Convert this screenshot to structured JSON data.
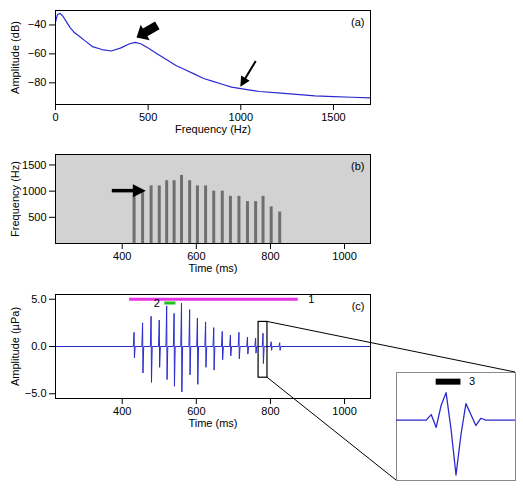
{
  "chart_data": [
    {
      "panel": "(a)",
      "type": "line",
      "x_label": "Frequency (Hz)",
      "y_label": "Amplitude (dB)",
      "x": [
        0,
        10,
        25,
        40,
        60,
        80,
        100,
        130,
        160,
        200,
        250,
        300,
        350,
        400,
        430,
        460,
        500,
        550,
        600,
        650,
        700,
        750,
        800,
        850,
        900,
        950,
        1000,
        1050,
        1100,
        1200,
        1300,
        1400,
        1500,
        1600,
        1700
      ],
      "values": [
        -38,
        -33,
        -32,
        -34,
        -38,
        -42,
        -45,
        -48,
        -51,
        -55,
        -57,
        -58,
        -56,
        -53,
        -52,
        -53,
        -56,
        -60,
        -64,
        -68,
        -71,
        -74,
        -77,
        -79,
        -81,
        -83,
        -84,
        -85,
        -86,
        -87,
        -88,
        -89,
        -89.5,
        -90,
        -90.5
      ],
      "color": "#2a2ad0",
      "xlim": [
        0,
        1700
      ],
      "xticks": [
        0,
        500,
        1000,
        1500
      ],
      "ylim": [
        -95,
        -30
      ],
      "yticks": [
        {
          "value": -40,
          "label": "−40"
        },
        {
          "value": -60,
          "label": "−60"
        },
        {
          "value": -80,
          "label": "−80"
        }
      ],
      "arrows": [
        {
          "x": 440,
          "y": -49
        },
        {
          "x": 1000,
          "y": -83
        }
      ]
    },
    {
      "panel": "(b)",
      "type": "spectrogram",
      "x_label": "Time (ms)",
      "y_label": "Frequency (Hz)",
      "stripe_times": [
        432,
        455,
        478,
        500,
        520,
        540,
        560,
        582,
        603,
        625,
        647,
        670,
        692,
        715,
        738,
        760,
        780,
        802,
        825
      ],
      "stripe_fmax": [
        900,
        1000,
        1100,
        1100,
        1200,
        1200,
        1300,
        1200,
        1100,
        1100,
        1000,
        1000,
        900,
        900,
        800,
        800,
        900,
        700,
        600
      ],
      "xlim": [
        220,
        1070
      ],
      "xticks": [
        400,
        600,
        800,
        1000
      ],
      "ylim": [
        0,
        1700
      ],
      "yticks": [
        500,
        1000,
        1500
      ],
      "arrows": [
        {
          "x": 465,
          "y": 1000
        }
      ]
    },
    {
      "panel": "(c)",
      "type": "line",
      "x_label": "Time (ms)",
      "y_label": "Amplitude (µPa)",
      "x": [
        220,
        430,
        432,
        433,
        435,
        453,
        455,
        456,
        458,
        476,
        478,
        479,
        481,
        498,
        500,
        501,
        503,
        518,
        520,
        521,
        523,
        538,
        540,
        541,
        543,
        558,
        560,
        561,
        563,
        580,
        582,
        583,
        585,
        601,
        603,
        604,
        606,
        623,
        625,
        626,
        628,
        645,
        647,
        648,
        650,
        668,
        670,
        671,
        673,
        690,
        692,
        693,
        695,
        713,
        715,
        716,
        718,
        736,
        738,
        739,
        741,
        758,
        760,
        761,
        763,
        778,
        780,
        781,
        783,
        800,
        802,
        803,
        805,
        823,
        825,
        826,
        828,
        1070
      ],
      "values": [
        0,
        0,
        1.5,
        -1.2,
        0,
        0,
        2.5,
        -2.8,
        0,
        0,
        3.2,
        -3.8,
        0,
        0,
        2.8,
        -2.2,
        0,
        0,
        4.3,
        -3.5,
        0,
        0,
        3.5,
        -4.2,
        0,
        0,
        4.6,
        -4.8,
        0,
        0,
        3.9,
        -3.0,
        0,
        0,
        3.0,
        -4.0,
        0,
        0,
        2.6,
        -2.2,
        0,
        0,
        2.0,
        -2.5,
        0,
        0,
        1.6,
        -1.4,
        0,
        0,
        1.2,
        -1.0,
        0,
        0,
        1.5,
        -1.3,
        0,
        0,
        1.0,
        -0.8,
        0,
        0,
        0.9,
        -0.7,
        0,
        0,
        1.4,
        -1.8,
        0,
        0,
        0.5,
        -0.4,
        0,
        0,
        0.4,
        -0.4,
        0,
        0
      ],
      "color": "#2a2ad0",
      "xlim": [
        220,
        1070
      ],
      "xticks": [
        400,
        600,
        800,
        1000
      ],
      "ylim": [
        -5.5,
        5.5
      ],
      "yticks": [
        {
          "value": -5,
          "label": "−5.0"
        },
        {
          "value": 0,
          "label": "0.0"
        },
        {
          "value": 5,
          "label": "5.0"
        }
      ],
      "annotations": [
        {
          "label": "1",
          "x1": 420,
          "x2": 875,
          "y": 5.0,
          "color": "#e535e5"
        },
        {
          "label": "2",
          "x1": 515,
          "x2": 545,
          "y": 4.6,
          "color": "#22c022"
        }
      ]
    },
    {
      "type": "line",
      "tick_labels": false,
      "x": [
        768,
        774,
        775,
        776,
        777,
        778,
        779,
        780,
        781,
        782,
        783,
        784,
        785,
        786,
        792
      ],
      "values": [
        0,
        0,
        0.3,
        -0.4,
        0.8,
        1.5,
        -0.5,
        -3.0,
        -0.8,
        0.9,
        0.3,
        -0.3,
        0.1,
        0,
        0
      ],
      "color": "#2a2ad0",
      "xlim": [
        768,
        792
      ],
      "ylim": [
        -3.3,
        2.6
      ],
      "annotations": [
        {
          "label": "3",
          "x1": 776,
          "x2": 781,
          "y": 2.1,
          "color": "#000000"
        }
      ]
    }
  ]
}
